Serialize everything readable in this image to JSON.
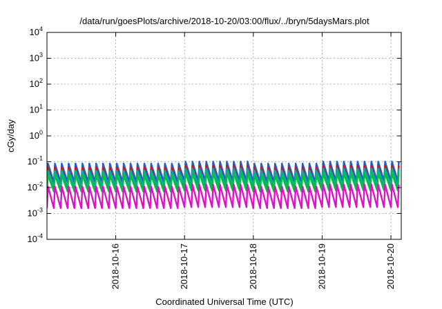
{
  "chart_data": {
    "type": "line",
    "title": "/data/run/goesPlots/archive/2018-10-20/03:00/flux/../bryn/5daysMars.plot",
    "xlabel": "Coordinated Universal Time (UTC)",
    "ylabel": "cGy/day",
    "yscale": "log",
    "ylim": [
      0.0001,
      10000
    ],
    "xlim": [
      0.0,
      5.15
    ],
    "x_epoch_label": "2018-10-15",
    "yticks": [
      {
        "base": "10",
        "exp": "-4"
      },
      {
        "base": "10",
        "exp": "-3"
      },
      {
        "base": "10",
        "exp": "-2"
      },
      {
        "base": "10",
        "exp": "-1"
      },
      {
        "base": "10",
        "exp": "0"
      },
      {
        "base": "10",
        "exp": "1"
      },
      {
        "base": "10",
        "exp": "2"
      },
      {
        "base": "10",
        "exp": "3"
      },
      {
        "base": "10",
        "exp": "4"
      }
    ],
    "xticks": [
      "2018-10-16",
      "2018-10-17",
      "2018-10-18",
      "2018-10-19",
      "2018-10-20"
    ],
    "grid": true,
    "cycles_per_day": 10,
    "series": [
      {
        "color": "#1a5fd6",
        "peak": 0.085,
        "trough": 0.016
      },
      {
        "color": "#d01818",
        "peak": 0.06,
        "trough": 0.009
      },
      {
        "color": "#00b0a0",
        "peak": 0.045,
        "trough": 0.011
      },
      {
        "color": "#00c040",
        "peak": 0.03,
        "trough": 0.007
      },
      {
        "color": "#e010c8",
        "peak": 0.011,
        "trough": 0.0016
      }
    ]
  }
}
